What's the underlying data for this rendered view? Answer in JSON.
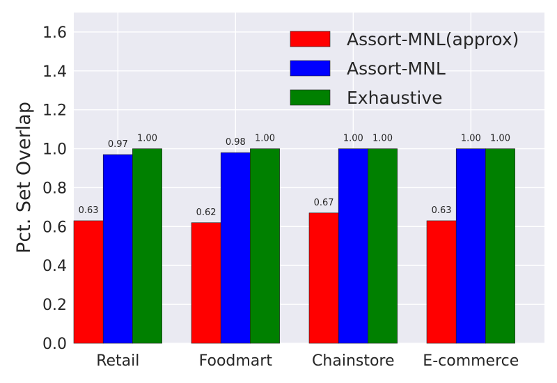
{
  "chart_data": {
    "type": "bar",
    "categories": [
      "Retail",
      "Foodmart",
      "Chainstore",
      "E-commerce"
    ],
    "series": [
      {
        "name": "Assort-MNL(approx)",
        "color": "#ff0000",
        "values": [
          0.63,
          0.62,
          0.67,
          0.63
        ],
        "labels": [
          "0.63",
          "0.62",
          "0.67",
          "0.63"
        ]
      },
      {
        "name": "Assort-MNL",
        "color": "#0000ff",
        "values": [
          0.97,
          0.98,
          1.0,
          1.0
        ],
        "labels": [
          "0.97",
          "0.98",
          "1.00",
          "1.00"
        ]
      },
      {
        "name": "Exhaustive",
        "color": "#008000",
        "values": [
          1.0,
          1.0,
          1.0,
          1.0
        ],
        "labels": [
          "1.00",
          "1.00",
          "1.00",
          "1.00"
        ]
      }
    ],
    "ylabel": "Pct. Set Overlap",
    "xlabel": "",
    "ylim": [
      0,
      1.7
    ],
    "yticks": [
      "0.0",
      "0.2",
      "0.4",
      "0.6",
      "0.8",
      "1.0",
      "1.2",
      "1.4",
      "1.6"
    ],
    "grid": true,
    "legend_position": "top-right",
    "plot_background": "#eaeaf2"
  }
}
